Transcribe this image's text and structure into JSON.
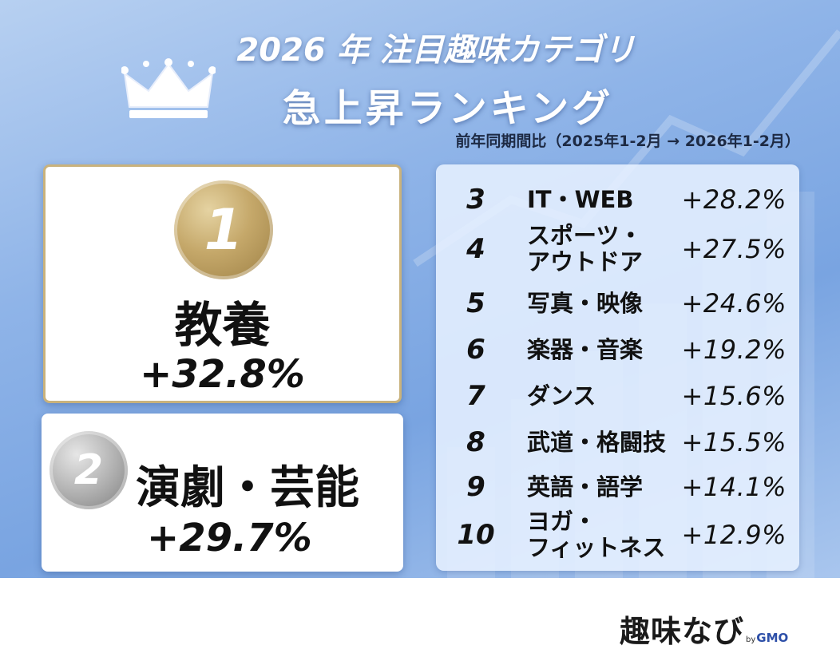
{
  "header": {
    "title_line1": "2026 年 注目趣味カテゴリ",
    "title_line2": "急上昇ランキング",
    "period": "前年同期間比（2025年1-2月 → 2026年1-2月）"
  },
  "top": [
    {
      "rank": "1",
      "category": "教養",
      "change": "+32.8%",
      "medal_color": "#c5a86a"
    },
    {
      "rank": "2",
      "category": "演劇・芸能",
      "change": "+29.7%",
      "medal_color": "#b3b3b3"
    }
  ],
  "ranking": [
    {
      "rank": "3",
      "category": "IT・WEB",
      "change": "+28.2%"
    },
    {
      "rank": "4",
      "category": "スポーツ・\nアウトドア",
      "change": "+27.5%"
    },
    {
      "rank": "5",
      "category": "写真・映像",
      "change": "+24.6%"
    },
    {
      "rank": "6",
      "category": "楽器・音楽",
      "change": "+19.2%"
    },
    {
      "rank": "7",
      "category": "ダンス",
      "change": "+15.6%"
    },
    {
      "rank": "8",
      "category": "武道・格闘技",
      "change": "+15.5%"
    },
    {
      "rank": "9",
      "category": "英語・語学",
      "change": "+14.1%"
    },
    {
      "rank": "10",
      "category": "ヨガ・\nフィットネス",
      "change": "+12.9%"
    }
  ],
  "logo": {
    "name": "趣味なび",
    "by": "by",
    "brand": "GMO"
  },
  "colors": {
    "gold": "#c5a86a",
    "silver": "#b3b3b3",
    "background": "#8fb4e8",
    "text": "#111111"
  },
  "icons": {
    "crown": "crown-icon"
  }
}
